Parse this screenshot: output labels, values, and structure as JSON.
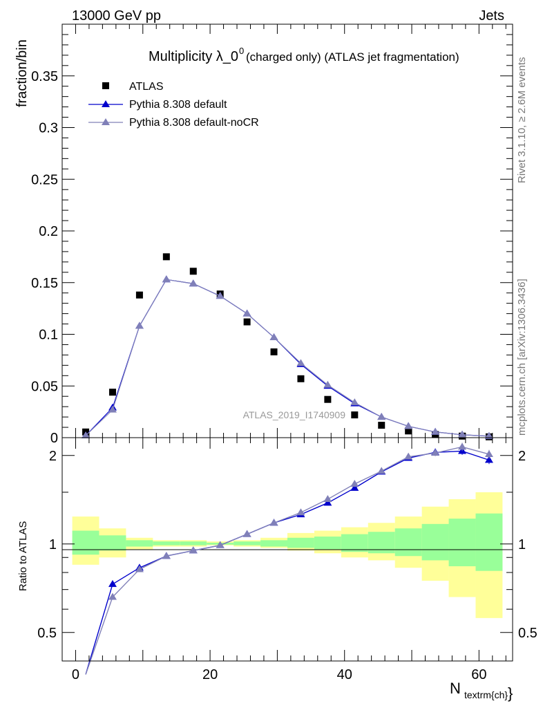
{
  "header": {
    "left": "13000 GeV pp",
    "right": "Jets",
    "side_top": "Rivet 3.1.10, ≥ 2.6M events",
    "side_bottom": "mcplots.cern.ch [arXiv:1306.3436]"
  },
  "chart_data": [
    {
      "type": "scatter",
      "title": "Multiplicity λ_0",
      "title_superscript": "0",
      "title_suffix": "(charged only) (ATLAS jet fragmentation)",
      "ylabel": "fraction/bin",
      "watermark": "ATLAS_2019_I1740909",
      "xlim": [
        -2,
        65
      ],
      "ylim": [
        0,
        0.4
      ],
      "y_ticks": [
        "0",
        "0.05",
        "0.1",
        "0.15",
        "0.2",
        "0.25",
        "0.3",
        "0.35"
      ],
      "legend_position": "top-left",
      "x": [
        1.5,
        5.5,
        9.5,
        13.5,
        17.5,
        21.5,
        25.5,
        29.5,
        33.5,
        37.5,
        41.5,
        45.5,
        49.5,
        53.5,
        57.5,
        61.5
      ],
      "series": [
        {
          "name": "ATLAS",
          "color": "#000000",
          "marker": "square",
          "values": [
            0.0055,
            0.044,
            0.138,
            0.175,
            0.161,
            0.139,
            0.112,
            0.083,
            0.057,
            0.037,
            0.022,
            0.012,
            0.0065,
            0.003,
            0.0015,
            0.0008
          ]
        },
        {
          "name": "Pythia 8.308 default",
          "color": "#0000cc",
          "marker": "triangle",
          "values": [
            0.002,
            0.029,
            0.108,
            0.153,
            0.149,
            0.137,
            0.12,
            0.097,
            0.071,
            0.05,
            0.033,
            0.02,
            0.011,
            0.0055,
            0.0028,
            0.0014
          ]
        },
        {
          "name": "Pythia 8.308 default-noCR",
          "color": "#8080b8",
          "marker": "triangle",
          "values": [
            0.002,
            0.027,
            0.108,
            0.153,
            0.149,
            0.137,
            0.12,
            0.097,
            0.072,
            0.051,
            0.034,
            0.02,
            0.011,
            0.0055,
            0.0029,
            0.0015
          ]
        }
      ]
    },
    {
      "type": "line",
      "ylabel": "Ratio to ATLAS",
      "xlabel": "N",
      "xlabel_subscript": "textrm{ch}",
      "xlim": [
        -2,
        65
      ],
      "ylim": [
        0.4,
        2.3
      ],
      "y_scale": "log",
      "x_ticks": [
        "0",
        "20",
        "40",
        "60"
      ],
      "y_ticks": [
        "0.5",
        "1",
        "2"
      ],
      "reference_line": 1,
      "bins": [
        [
          -0.5,
          3.5
        ],
        [
          3.5,
          7.5
        ],
        [
          7.5,
          11.5
        ],
        [
          11.5,
          15.5
        ],
        [
          15.5,
          19.5
        ],
        [
          19.5,
          23.5
        ],
        [
          23.5,
          27.5
        ],
        [
          27.5,
          31.5
        ],
        [
          31.5,
          35.5
        ],
        [
          35.5,
          39.5
        ],
        [
          39.5,
          43.5
        ],
        [
          43.5,
          47.5
        ],
        [
          47.5,
          51.5
        ],
        [
          51.5,
          55.5
        ],
        [
          55.5,
          59.5
        ],
        [
          59.5,
          63.5
        ]
      ],
      "band_inner": [
        [
          0.92,
          1.11
        ],
        [
          0.95,
          1.07
        ],
        [
          0.98,
          1.03
        ],
        [
          0.99,
          1.02
        ],
        [
          0.99,
          1.02
        ],
        [
          0.995,
          1.01
        ],
        [
          0.99,
          1.02
        ],
        [
          0.98,
          1.03
        ],
        [
          0.97,
          1.05
        ],
        [
          0.96,
          1.06
        ],
        [
          0.94,
          1.08
        ],
        [
          0.93,
          1.1
        ],
        [
          0.91,
          1.13
        ],
        [
          0.88,
          1.17
        ],
        [
          0.84,
          1.22
        ],
        [
          0.81,
          1.27
        ]
      ],
      "band_outer": [
        [
          0.85,
          1.24
        ],
        [
          0.9,
          1.13
        ],
        [
          0.96,
          1.05
        ],
        [
          0.98,
          1.03
        ],
        [
          0.98,
          1.03
        ],
        [
          0.99,
          1.02
        ],
        [
          0.98,
          1.03
        ],
        [
          0.97,
          1.05
        ],
        [
          0.95,
          1.09
        ],
        [
          0.93,
          1.11
        ],
        [
          0.9,
          1.14
        ],
        [
          0.88,
          1.18
        ],
        [
          0.83,
          1.24
        ],
        [
          0.75,
          1.34
        ],
        [
          0.66,
          1.42
        ],
        [
          0.56,
          1.5
        ]
      ],
      "x": [
        1.5,
        5.5,
        9.5,
        13.5,
        17.5,
        21.5,
        25.5,
        29.5,
        33.5,
        37.5,
        41.5,
        45.5,
        49.5,
        53.5,
        57.5,
        61.5
      ],
      "series": [
        {
          "name": "Pythia 8.308 default",
          "color": "#0000cc",
          "values": [
            0.36,
            0.73,
            0.83,
            0.91,
            0.95,
            0.99,
            1.08,
            1.18,
            1.26,
            1.38,
            1.55,
            1.76,
            1.96,
            2.05,
            2.07,
            1.93
          ],
          "errors": [
            0,
            0,
            0,
            0,
            0,
            0,
            0,
            0,
            0,
            0.01,
            0.01,
            0.02,
            0.03,
            0.05,
            0.06,
            0.06
          ]
        },
        {
          "name": "Pythia 8.308 default-noCR",
          "color": "#8080b8",
          "values": [
            0.36,
            0.66,
            0.82,
            0.91,
            0.95,
            0.99,
            1.08,
            1.18,
            1.28,
            1.42,
            1.6,
            1.77,
            1.98,
            2.04,
            2.14,
            2.02
          ],
          "errors": [
            0,
            0,
            0,
            0,
            0,
            0,
            0,
            0,
            0,
            0.01,
            0.01,
            0.02,
            0.03,
            0.05,
            0.07,
            0.07
          ]
        }
      ]
    }
  ]
}
